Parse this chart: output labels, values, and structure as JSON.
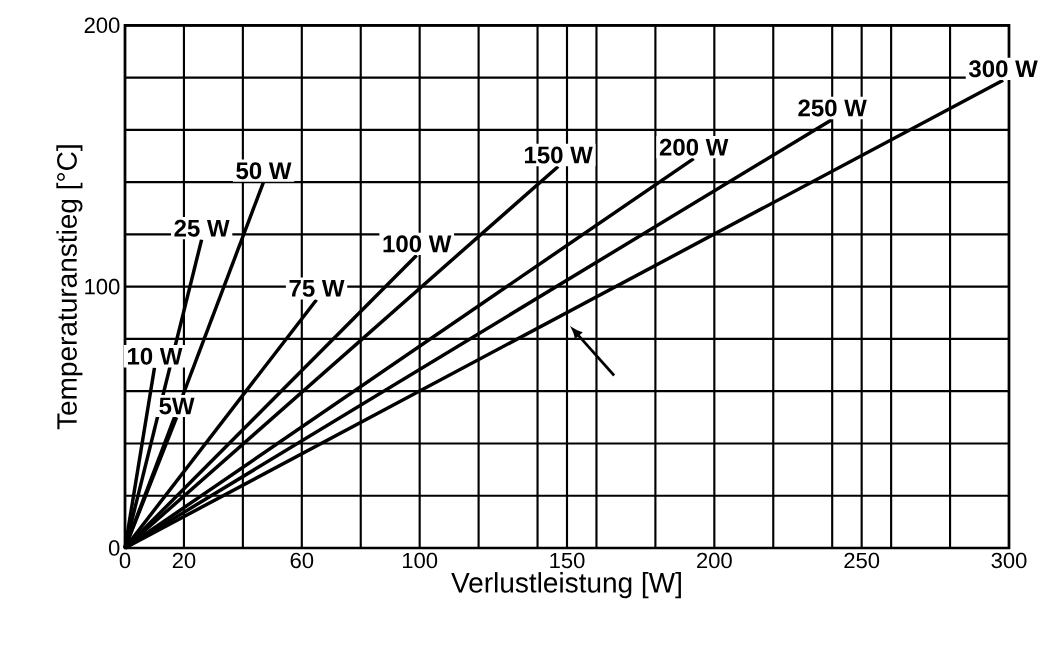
{
  "chart_data": {
    "type": "line",
    "xlabel": "Verlustleistung [W]",
    "ylabel": "Temperaturanstieg [°C]",
    "xlim": [
      0,
      300
    ],
    "ylim": [
      0,
      200
    ],
    "xticks": [
      0,
      20,
      {
        "value": 40,
        "label": null
      },
      60,
      {
        "value": 80,
        "label": null
      },
      100,
      {
        "value": 120,
        "label": null
      },
      {
        "value": 140,
        "label": null
      },
      150,
      {
        "value": 160,
        "label": null
      },
      {
        "value": 180,
        "label": null
      },
      200,
      {
        "value": 220,
        "label": null
      },
      {
        "value": 240,
        "label": null
      },
      250,
      {
        "value": 260,
        "label": null
      },
      {
        "value": 280,
        "label": null
      },
      300
    ],
    "yticks": [
      0,
      {
        "value": 20,
        "label": null
      },
      {
        "value": 40,
        "label": null
      },
      {
        "value": 60,
        "label": null
      },
      {
        "value": 80,
        "label": null
      },
      100,
      {
        "value": 120,
        "label": null
      },
      {
        "value": 140,
        "label": null
      },
      {
        "value": 160,
        "label": null
      },
      {
        "value": 180,
        "label": null
      },
      200
    ],
    "grid": true,
    "marker": "none",
    "line_style": "solid",
    "series": [
      {
        "name": "5W",
        "color": "#000000",
        "x": [
          0,
          17.5
        ],
        "values": [
          0,
          50
        ]
      },
      {
        "name": "10 W",
        "color": "#000000",
        "x": [
          0,
          10
        ],
        "values": [
          0,
          69
        ]
      },
      {
        "name": "25 W",
        "color": "#000000",
        "x": [
          0,
          26
        ],
        "values": [
          0,
          118
        ]
      },
      {
        "name": "50 W",
        "color": "#000000",
        "x": [
          0,
          47
        ],
        "values": [
          0,
          140
        ]
      },
      {
        "name": "75 W",
        "color": "#000000",
        "x": [
          0,
          65
        ],
        "values": [
          0,
          95
        ]
      },
      {
        "name": "100 W",
        "color": "#000000",
        "x": [
          0,
          99
        ],
        "values": [
          0,
          112
        ]
      },
      {
        "name": "150 W",
        "color": "#000000",
        "x": [
          0,
          147
        ],
        "values": [
          0,
          146
        ]
      },
      {
        "name": "200 W",
        "color": "#000000",
        "x": [
          0,
          193
        ],
        "values": [
          0,
          149
        ]
      },
      {
        "name": "250 W",
        "color": "#000000",
        "x": [
          0,
          240
        ],
        "values": [
          0,
          164
        ]
      },
      {
        "name": "300 W",
        "color": "#000000",
        "x": [
          0,
          298
        ],
        "values": [
          0,
          179
        ]
      }
    ]
  }
}
